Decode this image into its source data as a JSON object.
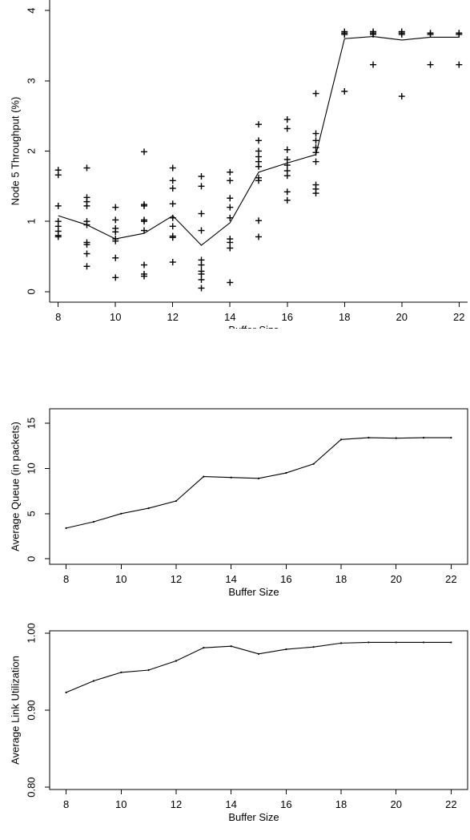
{
  "chart_data": [
    {
      "type": "scatter",
      "title": "",
      "xlabel": "Buffer Size",
      "ylabel": "Node 5 Throughput (%)",
      "xlim": [
        7.7,
        22.3
      ],
      "ylim": [
        -0.15,
        4.15
      ],
      "xticks": [
        "8",
        "10",
        "12",
        "14",
        "16",
        "18",
        "20",
        "22"
      ],
      "yticks": [
        "0",
        "1",
        "2",
        "3",
        "4"
      ],
      "grid": false,
      "series": [
        {
          "type": "scatter",
          "marker": "plus",
          "points": [
            [
              8,
              1.73
            ],
            [
              8,
              1.66
            ],
            [
              8,
              1.22
            ],
            [
              8,
              1.0
            ],
            [
              8,
              0.93
            ],
            [
              8,
              0.86
            ],
            [
              8,
              0.8
            ],
            [
              8,
              0.78
            ],
            [
              9,
              1.76
            ],
            [
              9,
              1.34
            ],
            [
              9,
              1.28
            ],
            [
              9,
              1.22
            ],
            [
              9,
              1.0
            ],
            [
              9,
              0.95
            ],
            [
              9,
              0.7
            ],
            [
              9,
              0.67
            ],
            [
              9,
              0.54
            ],
            [
              9,
              0.36
            ],
            [
              10,
              1.2
            ],
            [
              10,
              1.02
            ],
            [
              10,
              0.9
            ],
            [
              10,
              0.85
            ],
            [
              10,
              0.75
            ],
            [
              10,
              0.72
            ],
            [
              10,
              0.48
            ],
            [
              10,
              0.2
            ],
            [
              11,
              1.99
            ],
            [
              11,
              1.24
            ],
            [
              11,
              1.22
            ],
            [
              11,
              1.02
            ],
            [
              11,
              1.0
            ],
            [
              11,
              0.87
            ],
            [
              11,
              0.38
            ],
            [
              11,
              0.25
            ],
            [
              11,
              0.22
            ],
            [
              12,
              1.76
            ],
            [
              12,
              1.58
            ],
            [
              12,
              1.47
            ],
            [
              12,
              1.25
            ],
            [
              12,
              1.05
            ],
            [
              12,
              0.93
            ],
            [
              12,
              0.79
            ],
            [
              12,
              0.77
            ],
            [
              12,
              0.42
            ],
            [
              13,
              1.64
            ],
            [
              13,
              1.5
            ],
            [
              13,
              1.11
            ],
            [
              13,
              0.87
            ],
            [
              13,
              0.45
            ],
            [
              13,
              0.38
            ],
            [
              13,
              0.29
            ],
            [
              13,
              0.25
            ],
            [
              13,
              0.17
            ],
            [
              13,
              0.05
            ],
            [
              14,
              1.7
            ],
            [
              14,
              1.58
            ],
            [
              14,
              1.33
            ],
            [
              14,
              1.2
            ],
            [
              14,
              1.05
            ],
            [
              14,
              0.75
            ],
            [
              14,
              0.7
            ],
            [
              14,
              0.62
            ],
            [
              14,
              0.13
            ],
            [
              15,
              2.38
            ],
            [
              15,
              2.15
            ],
            [
              15,
              2.0
            ],
            [
              15,
              1.92
            ],
            [
              15,
              1.85
            ],
            [
              15,
              1.78
            ],
            [
              15,
              1.62
            ],
            [
              15,
              1.58
            ],
            [
              15,
              1.01
            ],
            [
              15,
              0.78
            ],
            [
              16,
              2.45
            ],
            [
              16,
              2.32
            ],
            [
              16,
              2.02
            ],
            [
              16,
              1.88
            ],
            [
              16,
              1.8
            ],
            [
              16,
              1.72
            ],
            [
              16,
              1.65
            ],
            [
              16,
              1.42
            ],
            [
              16,
              1.3
            ],
            [
              17,
              2.82
            ],
            [
              17,
              2.25
            ],
            [
              17,
              2.15
            ],
            [
              17,
              2.05
            ],
            [
              17,
              1.98
            ],
            [
              17,
              1.85
            ],
            [
              17,
              1.52
            ],
            [
              17,
              1.46
            ],
            [
              17,
              1.4
            ],
            [
              18,
              3.7
            ],
            [
              18,
              3.68
            ],
            [
              18,
              3.66
            ],
            [
              18,
              2.85
            ],
            [
              19,
              3.7
            ],
            [
              19,
              3.68
            ],
            [
              19,
              3.66
            ],
            [
              19,
              3.23
            ],
            [
              20,
              3.7
            ],
            [
              20,
              3.68
            ],
            [
              20,
              3.66
            ],
            [
              20,
              2.78
            ],
            [
              21,
              3.68
            ],
            [
              21,
              3.66
            ],
            [
              21,
              3.23
            ],
            [
              22,
              3.68
            ],
            [
              22,
              3.66
            ],
            [
              22,
              3.23
            ]
          ]
        },
        {
          "type": "line",
          "x": [
            8,
            9,
            10,
            11,
            12,
            13,
            14,
            15,
            16,
            17,
            18,
            19,
            20,
            21,
            22
          ],
          "values": [
            1.08,
            0.95,
            0.75,
            0.83,
            1.08,
            0.66,
            0.98,
            1.7,
            1.83,
            1.95,
            3.6,
            3.63,
            3.58,
            3.62,
            3.62
          ]
        }
      ]
    },
    {
      "type": "line",
      "title": "",
      "xlabel": "Buffer Size",
      "ylabel": "Average Queue (in packets)",
      "xlim": [
        7.4,
        22.6
      ],
      "ylim": [
        -0.6,
        16.6
      ],
      "xticks": [
        "8",
        "10",
        "12",
        "14",
        "16",
        "18",
        "20",
        "22"
      ],
      "yticks": [
        "0",
        "5",
        "10",
        "15"
      ],
      "grid": false,
      "series": [
        {
          "x": [
            8,
            9,
            10,
            11,
            12,
            13,
            14,
            15,
            16,
            17,
            18,
            19,
            20,
            21,
            22
          ],
          "values": [
            3.4,
            4.1,
            5.0,
            5.6,
            6.4,
            9.1,
            9.0,
            8.9,
            9.5,
            10.5,
            13.2,
            13.4,
            13.35,
            13.4,
            13.4
          ]
        }
      ]
    },
    {
      "type": "line",
      "title": "",
      "xlabel": "Buffer Size",
      "ylabel": "Average Link Utilization",
      "xlim": [
        7.4,
        22.6
      ],
      "ylim": [
        0.797,
        1.003
      ],
      "xticks": [
        "8",
        "10",
        "12",
        "14",
        "16",
        "18",
        "20",
        "22"
      ],
      "yticks": [
        "0.80",
        "0.90",
        "1.00"
      ],
      "grid": false,
      "series": [
        {
          "x": [
            8,
            9,
            10,
            11,
            12,
            13,
            14,
            15,
            16,
            17,
            18,
            19,
            20,
            21,
            22
          ],
          "values": [
            0.923,
            0.938,
            0.949,
            0.952,
            0.964,
            0.981,
            0.983,
            0.973,
            0.979,
            0.982,
            0.987,
            0.988,
            0.988,
            0.988,
            0.988
          ]
        }
      ]
    }
  ]
}
